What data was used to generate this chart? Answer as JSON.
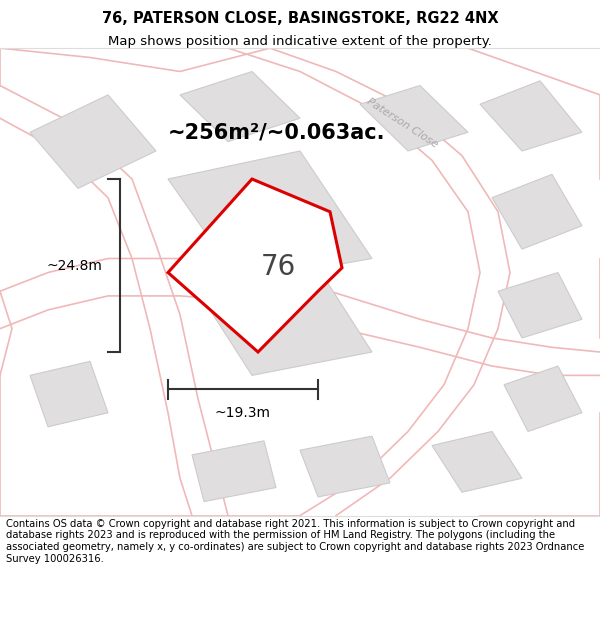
{
  "title_line1": "76, PATERSON CLOSE, BASINGSTOKE, RG22 4NX",
  "title_line2": "Map shows position and indicative extent of the property.",
  "area_label": "~256m²/~0.063ac.",
  "width_label": "~19.3m",
  "height_label": "~24.8m",
  "plot_number": "76",
  "road_label": "Paterson Close",
  "footer_text": "Contains OS data © Crown copyright and database right 2021. This information is subject to Crown copyright and database rights 2023 and is reproduced with the permission of HM Land Registry. The polygons (including the associated geometry, namely x, y co-ordinates) are subject to Crown copyright and database rights 2023 Ordnance Survey 100026316.",
  "bg_color": "#f7f2f2",
  "plot_fill": "#ffffff",
  "plot_edge_color": "#dd0000",
  "neighbor_fill": "#e0dede",
  "neighbor_edge": "#cccccc",
  "road_color": "#f0b8b8",
  "road_label_color": "#aaaaaa",
  "title_fontsize": 10.5,
  "subtitle_fontsize": 9.5,
  "footer_fontsize": 7.2,
  "area_fontsize": 15,
  "measure_fontsize": 10,
  "plot_num_fontsize": 20
}
